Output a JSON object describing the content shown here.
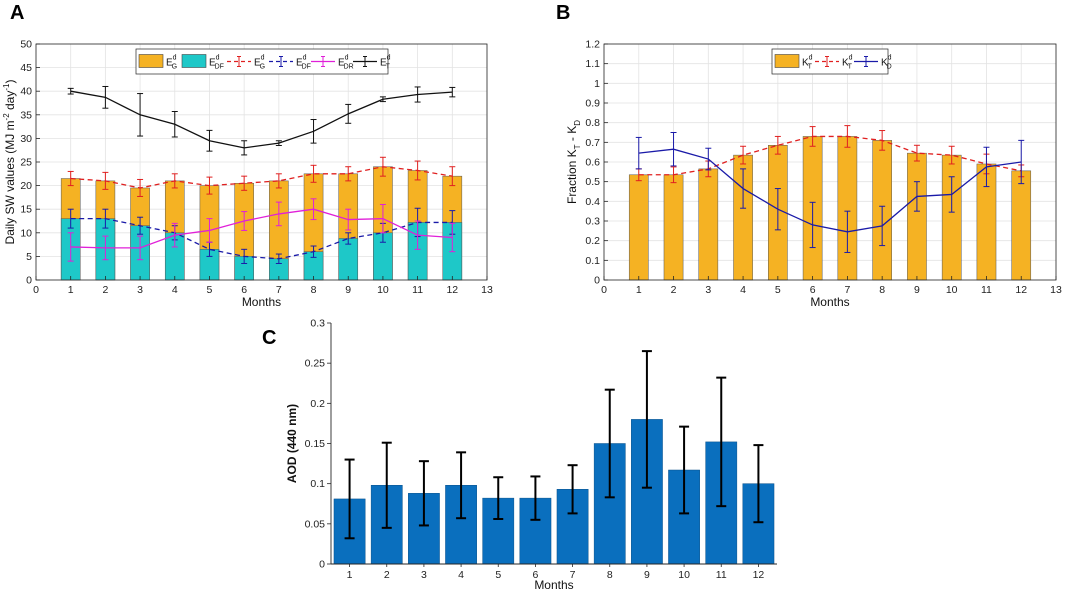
{
  "chart_data": [
    {
      "panel": "A",
      "type": "bar",
      "xlabel": "Months",
      "ylabel": "Daily SW values (MJ m-2 day-1)",
      "ylabel_parts": [
        "Daily SW values (MJ m",
        "-2",
        " day",
        "-1",
        ")"
      ],
      "xlim": [
        0,
        13
      ],
      "ylim": [
        0,
        50
      ],
      "xticks": [
        0,
        1,
        2,
        3,
        4,
        5,
        6,
        7,
        8,
        9,
        10,
        11,
        12,
        13
      ],
      "yticks": [
        0,
        5,
        10,
        15,
        20,
        25,
        30,
        35,
        40,
        45,
        50
      ],
      "grid": true,
      "legend": "top",
      "legend_entries": [
        {
          "base": "E",
          "sup": "d",
          "sub": "G"
        },
        {
          "base": "E",
          "sup": "d",
          "sub": "DF"
        },
        {
          "base": "E",
          "sup": "d",
          "sub": "G"
        },
        {
          "base": "E",
          "sup": "d",
          "sub": "DF"
        },
        {
          "base": "E",
          "sup": "d",
          "sub": "DR"
        },
        {
          "base": "E",
          "sup": "d",
          "sub": "T"
        }
      ],
      "x": [
        1,
        2,
        3,
        4,
        5,
        6,
        7,
        8,
        9,
        10,
        11,
        12
      ],
      "bars": [
        {
          "name": "E_G^d",
          "color": "#f5b223",
          "values": [
            21.5,
            21.0,
            19.5,
            21.0,
            20.0,
            20.5,
            21.0,
            22.5,
            22.5,
            24.0,
            23.2,
            22.0
          ]
        },
        {
          "name": "E_DF^d",
          "color": "#1ec8c8",
          "values": [
            13.0,
            13.0,
            11.5,
            10.0,
            6.5,
            5.0,
            4.5,
            6.0,
            8.8,
            10.0,
            12.2,
            12.2
          ]
        }
      ],
      "series": [
        {
          "name": "E_G^d",
          "color": "#e02020",
          "dash": true,
          "values": [
            21.5,
            21.0,
            19.5,
            21.0,
            20.0,
            20.5,
            21.0,
            22.5,
            22.5,
            24.0,
            23.2,
            22.0
          ],
          "err": [
            1.5,
            1.8,
            1.8,
            1.5,
            1.8,
            1.5,
            1.5,
            1.8,
            1.5,
            2.0,
            2.0,
            2.0
          ]
        },
        {
          "name": "E_DF^d",
          "color": "#1a1aa8",
          "dash": true,
          "values": [
            13.0,
            13.0,
            11.5,
            10.0,
            6.5,
            5.0,
            4.5,
            6.0,
            8.8,
            10.0,
            12.2,
            12.2
          ],
          "err": [
            2.0,
            2.0,
            1.8,
            1.5,
            1.5,
            1.5,
            1.0,
            1.2,
            1.2,
            2.0,
            3.0,
            2.5
          ]
        },
        {
          "name": "E_DR^d",
          "color": "#e020d8",
          "dash": false,
          "values": [
            7.0,
            6.8,
            6.8,
            9.5,
            10.5,
            12.5,
            14.0,
            15.0,
            12.8,
            13.0,
            9.5,
            9.0
          ],
          "err": [
            3.0,
            2.5,
            2.5,
            2.5,
            2.5,
            2.0,
            2.5,
            2.2,
            2.2,
            3.0,
            3.0,
            3.0
          ]
        },
        {
          "name": "E_T^d",
          "color": "#111111",
          "dash": false,
          "values": [
            40.0,
            38.7,
            35.0,
            33.0,
            29.5,
            28.0,
            29.0,
            31.5,
            35.2,
            38.3,
            39.3,
            39.8
          ],
          "err": [
            0.6,
            2.3,
            4.5,
            2.7,
            2.2,
            1.5,
            0.5,
            2.5,
            2.0,
            0.5,
            1.6,
            1.0
          ]
        }
      ]
    },
    {
      "panel": "B",
      "type": "bar",
      "xlabel": "Months",
      "ylabel": "Fraction K_T - K_D",
      "ylabel_parts": [
        "Fraction K",
        "T",
        " - K",
        "D"
      ],
      "xlim": [
        0,
        13
      ],
      "ylim": [
        0,
        1.2
      ],
      "xticks": [
        0,
        1,
        2,
        3,
        4,
        5,
        6,
        7,
        8,
        9,
        10,
        11,
        12,
        13
      ],
      "yticks": [
        0,
        0.1,
        0.2,
        0.3,
        0.4,
        0.5,
        0.6,
        0.7,
        0.8,
        0.9,
        1,
        1.1,
        1.2
      ],
      "grid": true,
      "legend": "top",
      "legend_entries": [
        {
          "base": "K",
          "sup": "d",
          "sub": "T"
        },
        {
          "base": "K",
          "sup": "d",
          "sub": "T"
        },
        {
          "base": "K",
          "sup": "d",
          "sub": "D"
        }
      ],
      "x": [
        1,
        2,
        3,
        4,
        5,
        6,
        7,
        8,
        9,
        10,
        11,
        12
      ],
      "bars": [
        {
          "name": "K_T^d",
          "color": "#f5b223",
          "values": [
            0.535,
            0.535,
            0.565,
            0.635,
            0.685,
            0.73,
            0.73,
            0.71,
            0.645,
            0.635,
            0.59,
            0.555
          ]
        }
      ],
      "series": [
        {
          "name": "K_T^d",
          "color": "#e02020",
          "dash": true,
          "values": [
            0.535,
            0.535,
            0.565,
            0.635,
            0.685,
            0.73,
            0.73,
            0.71,
            0.645,
            0.635,
            0.59,
            0.555
          ],
          "err": [
            0.03,
            0.04,
            0.04,
            0.045,
            0.045,
            0.05,
            0.055,
            0.05,
            0.04,
            0.045,
            0.05,
            0.03
          ]
        },
        {
          "name": "K_D^d",
          "color": "#1a1aa8",
          "dash": false,
          "values": [
            0.645,
            0.665,
            0.615,
            0.465,
            0.36,
            0.28,
            0.245,
            0.275,
            0.425,
            0.435,
            0.575,
            0.6
          ],
          "err": [
            0.08,
            0.085,
            0.055,
            0.1,
            0.105,
            0.115,
            0.105,
            0.1,
            0.075,
            0.09,
            0.1,
            0.11
          ]
        }
      ]
    },
    {
      "panel": "C",
      "type": "bar",
      "xlabel": "Months",
      "ylabel": "AOD (440 nm)",
      "ylim": [
        0,
        0.3
      ],
      "yticks": [
        0,
        0.05,
        0.1,
        0.15,
        0.2,
        0.25,
        0.3
      ],
      "ytick_labels": [
        "0",
        "0.05",
        "0.1",
        "0.15",
        "0.2",
        "0.25",
        "0.3"
      ],
      "grid": false,
      "categories": [
        "1",
        "2",
        "3",
        "4",
        "5",
        "6",
        "7",
        "8",
        "9",
        "10",
        "11",
        "12"
      ],
      "color": "#0a6fbe",
      "values": [
        0.081,
        0.098,
        0.088,
        0.098,
        0.082,
        0.082,
        0.093,
        0.15,
        0.18,
        0.117,
        0.152,
        0.1
      ],
      "err": [
        0.049,
        0.053,
        0.04,
        0.041,
        0.026,
        0.027,
        0.03,
        0.067,
        0.085,
        0.054,
        0.08,
        0.048
      ]
    }
  ]
}
